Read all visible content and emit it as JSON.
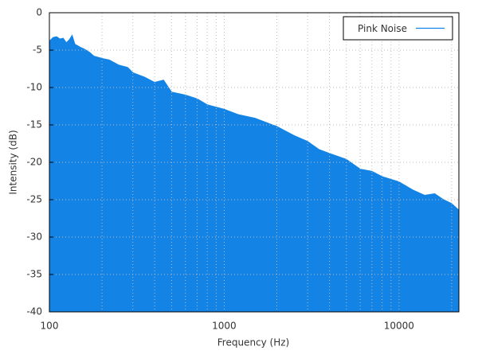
{
  "chart_data": {
    "type": "area",
    "x_label": "Frequency (Hz)",
    "y_label": "Intensity (dB)",
    "x": [
      100,
      105,
      110,
      115,
      120,
      125,
      130,
      135,
      140,
      150,
      160,
      170,
      180,
      200,
      220,
      250,
      280,
      300,
      350,
      400,
      450,
      500,
      600,
      700,
      800,
      1000,
      1200,
      1500,
      1800,
      2000,
      2500,
      3000,
      3500,
      4000,
      5000,
      6000,
      7000,
      8000,
      10000,
      12000,
      14000,
      16000,
      18000,
      20000,
      22000
    ],
    "series": [
      {
        "name": "Pink Noise",
        "color": "#1384e6",
        "values": [
          -3.8,
          -3.3,
          -3.2,
          -3.5,
          -3.4,
          -4.0,
          -3.6,
          -3.0,
          -4.2,
          -4.6,
          -4.9,
          -5.3,
          -5.8,
          -6.1,
          -6.3,
          -7.0,
          -7.3,
          -8.0,
          -8.6,
          -9.3,
          -9.0,
          -10.6,
          -11.0,
          -11.5,
          -12.3,
          -12.9,
          -13.6,
          -14.1,
          -14.8,
          -15.2,
          -16.4,
          -17.2,
          -18.3,
          -18.8,
          -19.6,
          -20.9,
          -21.2,
          -21.9,
          -22.6,
          -23.7,
          -24.4,
          -24.2,
          -25.0,
          -25.5,
          -26.4
        ]
      }
    ],
    "xlim": [
      100,
      22000
    ],
    "ylim": [
      -40,
      0
    ],
    "x_log": true,
    "xticks": [
      100,
      1000,
      10000
    ],
    "xminorticks": [
      200,
      300,
      400,
      500,
      600,
      700,
      800,
      900,
      2000,
      3000,
      4000,
      5000,
      6000,
      7000,
      8000,
      9000,
      20000
    ],
    "yticks": [
      0,
      -5,
      -10,
      -15,
      -20,
      -25,
      -30,
      -35,
      -40
    ],
    "grid": true,
    "legend": "top-right"
  }
}
